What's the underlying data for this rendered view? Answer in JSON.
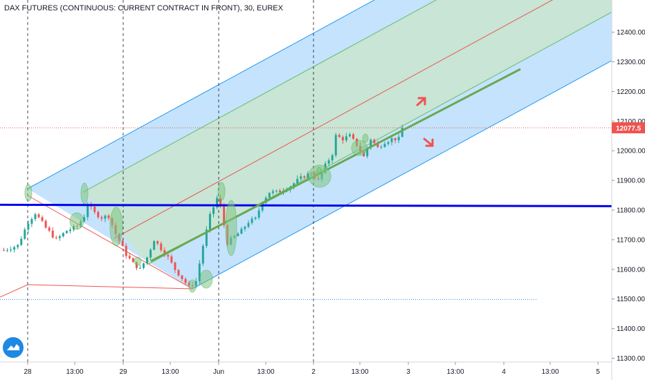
{
  "title": "DAX FUTURES (CONTINUOUS: CURRENT CONTRACT IN FRONT), 30, EUREX",
  "logo_icon": "tradingview-logo-icon",
  "colors": {
    "background": "#ffffff",
    "up": "#26a69a",
    "down": "#ef5350",
    "channel_outer": "#2196f3",
    "channel_inner": "#66bb6a",
    "median": "#ef5350",
    "support": "#0000ee",
    "trend": "#6aa84f",
    "price_label": "#ef5350",
    "arrow": "#ef5350"
  },
  "chart_data": {
    "type": "candlestick",
    "symbol": "DAX FUTURES (CONTINUOUS: CURRENT CONTRACT IN FRONT)",
    "interval": "30",
    "exchange": "EUREX",
    "x_ticks": [
      "28",
      "13:00",
      "29",
      "13:00",
      "Jun",
      "13:00",
      "2",
      "13:00",
      "3",
      "13:00",
      "4",
      "13:00",
      "5"
    ],
    "y_ticks": [
      12400,
      12300,
      12200,
      12100,
      12000,
      11900,
      11800,
      11700,
      11600,
      11500,
      11400,
      11300
    ],
    "ylim": [
      11270,
      12510
    ],
    "last_price": "12077.5",
    "support_level": 11820,
    "reference_level": 11510,
    "price_path": [
      [
        0,
        11665
      ],
      [
        4,
        11680
      ],
      [
        7,
        11760
      ],
      [
        9,
        11790
      ],
      [
        12,
        11740
      ],
      [
        15,
        11700
      ],
      [
        18,
        11730
      ],
      [
        21,
        11745
      ],
      [
        23,
        11780
      ],
      [
        24,
        11820
      ],
      [
        26,
        11790
      ],
      [
        28,
        11775
      ],
      [
        30,
        11780
      ],
      [
        32,
        11720
      ],
      [
        35,
        11650
      ],
      [
        37,
        11620
      ],
      [
        39,
        11600
      ],
      [
        41,
        11640
      ],
      [
        43,
        11700
      ],
      [
        45,
        11670
      ],
      [
        47,
        11640
      ],
      [
        49,
        11600
      ],
      [
        51,
        11570
      ],
      [
        53,
        11540
      ],
      [
        55,
        11560
      ],
      [
        57,
        11680
      ],
      [
        59,
        11780
      ],
      [
        61,
        11840
      ],
      [
        62,
        11810
      ],
      [
        64,
        11690
      ],
      [
        66,
        11710
      ],
      [
        68,
        11730
      ],
      [
        70,
        11760
      ],
      [
        72,
        11770
      ],
      [
        74,
        11830
      ],
      [
        76,
        11860
      ],
      [
        78,
        11860
      ],
      [
        80,
        11870
      ],
      [
        82,
        11880
      ],
      [
        84,
        11900
      ],
      [
        86,
        11915
      ],
      [
        88,
        11925
      ],
      [
        90,
        11900
      ],
      [
        92,
        11950
      ],
      [
        94,
        11990
      ],
      [
        95,
        12050
      ],
      [
        97,
        12040
      ],
      [
        99,
        12050
      ],
      [
        101,
        12020
      ],
      [
        103,
        11980
      ],
      [
        105,
        12040
      ],
      [
        107,
        12010
      ],
      [
        109,
        12030
      ],
      [
        111,
        12040
      ],
      [
        113,
        12040
      ],
      [
        114,
        12077
      ]
    ]
  },
  "annotations": {
    "channel": "pitchfork",
    "highlight_ellipses": 13,
    "arrows": [
      "up-right-arrow",
      "down-right-arrow"
    ]
  }
}
